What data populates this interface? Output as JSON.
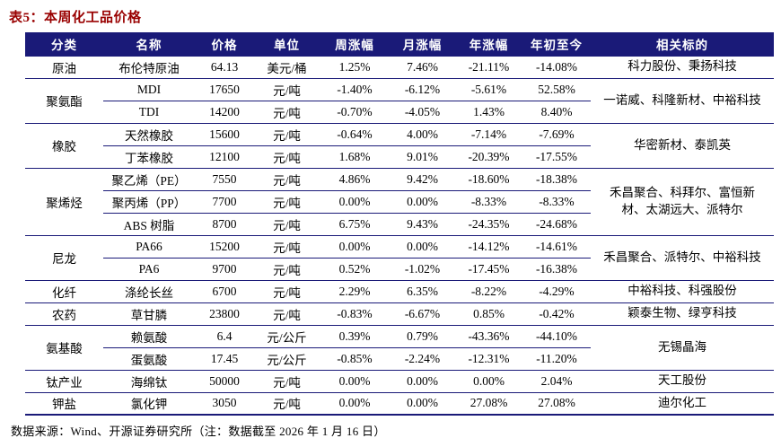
{
  "title": "表5：本周化工品价格",
  "columns": [
    "分类",
    "名称",
    "价格",
    "单位",
    "周涨幅",
    "月涨幅",
    "年涨幅",
    "年初至今",
    "相关标的"
  ],
  "colors": {
    "header_bg": "#1a1a78",
    "border": "#1a1a78",
    "title_color": "#990000"
  },
  "groups": [
    {
      "category": "原油",
      "related": "科力股份、秉扬科技",
      "rows": [
        {
          "name": "布伦特原油",
          "price": "64.13",
          "unit": "美元/桶",
          "week": "1.25%",
          "month": "7.46%",
          "year": "-21.11%",
          "ytd": "-14.08%"
        }
      ]
    },
    {
      "category": "聚氨酯",
      "related": "一诺威、科隆新材、中裕科技",
      "rows": [
        {
          "name": "MDI",
          "price": "17650",
          "unit": "元/吨",
          "week": "-1.40%",
          "month": "-6.12%",
          "year": "-5.61%",
          "ytd": "52.58%"
        },
        {
          "name": "TDI",
          "price": "14200",
          "unit": "元/吨",
          "week": "-0.70%",
          "month": "-4.05%",
          "year": "1.43%",
          "ytd": "8.40%"
        }
      ]
    },
    {
      "category": "橡胶",
      "related": "华密新材、泰凯英",
      "rows": [
        {
          "name": "天然橡胶",
          "price": "15600",
          "unit": "元/吨",
          "week": "-0.64%",
          "month": "4.00%",
          "year": "-7.14%",
          "ytd": "-7.69%"
        },
        {
          "name": "丁苯橡胶",
          "price": "12100",
          "unit": "元/吨",
          "week": "1.68%",
          "month": "9.01%",
          "year": "-20.39%",
          "ytd": "-17.55%"
        }
      ]
    },
    {
      "category": "聚烯烃",
      "related": "禾昌聚合、科拜尔、富恒新材、太湖远大、派特尔",
      "rows": [
        {
          "name": "聚乙烯（PE）",
          "price": "7550",
          "unit": "元/吨",
          "week": "4.86%",
          "month": "9.42%",
          "year": "-18.60%",
          "ytd": "-18.38%"
        },
        {
          "name": "聚丙烯（PP）",
          "price": "7700",
          "unit": "元/吨",
          "week": "0.00%",
          "month": "0.00%",
          "year": "-8.33%",
          "ytd": "-8.33%"
        },
        {
          "name": "ABS 树脂",
          "price": "8700",
          "unit": "元/吨",
          "week": "6.75%",
          "month": "9.43%",
          "year": "-24.35%",
          "ytd": "-24.68%"
        }
      ]
    },
    {
      "category": "尼龙",
      "related": "禾昌聚合、派特尔、中裕科技",
      "rows": [
        {
          "name": "PA66",
          "price": "15200",
          "unit": "元/吨",
          "week": "0.00%",
          "month": "0.00%",
          "year": "-14.12%",
          "ytd": "-14.61%"
        },
        {
          "name": "PA6",
          "price": "9700",
          "unit": "元/吨",
          "week": "0.52%",
          "month": "-1.02%",
          "year": "-17.45%",
          "ytd": "-16.38%"
        }
      ]
    },
    {
      "category": "化纤",
      "related": "中裕科技、科强股份",
      "rows": [
        {
          "name": "涤纶长丝",
          "price": "6700",
          "unit": "元/吨",
          "week": "2.29%",
          "month": "6.35%",
          "year": "-8.22%",
          "ytd": "-4.29%"
        }
      ]
    },
    {
      "category": "农药",
      "related": "颖泰生物、绿亨科技",
      "rows": [
        {
          "name": "草甘膦",
          "price": "23800",
          "unit": "元/吨",
          "week": "-0.83%",
          "month": "-6.67%",
          "year": "0.85%",
          "ytd": "-0.42%"
        }
      ]
    },
    {
      "category": "氨基酸",
      "related": "无锡晶海",
      "rows": [
        {
          "name": "赖氨酸",
          "price": "6.4",
          "unit": "元/公斤",
          "week": "0.39%",
          "month": "0.79%",
          "year": "-43.36%",
          "ytd": "-44.10%"
        },
        {
          "name": "蛋氨酸",
          "price": "17.45",
          "unit": "元/公斤",
          "week": "-0.85%",
          "month": "-2.24%",
          "year": "-12.31%",
          "ytd": "-11.20%"
        }
      ]
    },
    {
      "category": "钛产业",
      "related": "天工股份",
      "rows": [
        {
          "name": "海绵钛",
          "price": "50000",
          "unit": "元/吨",
          "week": "0.00%",
          "month": "0.00%",
          "year": "0.00%",
          "ytd": "2.04%"
        }
      ]
    },
    {
      "category": "钾盐",
      "related": "迪尔化工",
      "rows": [
        {
          "name": "氯化钾",
          "price": "3050",
          "unit": "元/吨",
          "week": "0.00%",
          "month": "0.00%",
          "year": "27.08%",
          "ytd": "27.08%"
        }
      ]
    }
  ],
  "footer": "数据来源：Wind、开源证券研究所（注：数据截至 2026 年 1 月 16 日）"
}
